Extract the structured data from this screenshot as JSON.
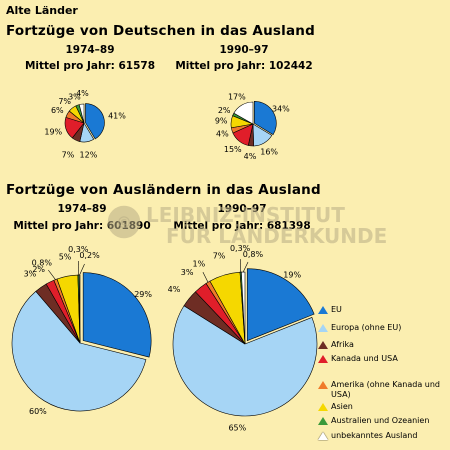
{
  "header": {
    "region": "Alte Länder"
  },
  "watermark": {
    "line1": "LEIBNIZ-INSTITUT",
    "line2": "FÜR LÄNDERKUNDE"
  },
  "legend": [
    {
      "label": "EU",
      "color": "#1a79d4"
    },
    {
      "label": "Europa (ohne EU)",
      "color": "#a6d5f5"
    },
    {
      "label": "Afrika",
      "color": "#6e2d24"
    },
    {
      "label": "Kanada und USA",
      "color": "#e01e2a"
    },
    {
      "label": "Amerika (ohne Kanada und USA)",
      "color": "#f07a2a"
    },
    {
      "label": "Asien",
      "color": "#f5d800"
    },
    {
      "label": "Australien und Ozeanien",
      "color": "#3a9a3a"
    },
    {
      "label": "unbekanntes Ausland",
      "color": "#ffffff"
    }
  ],
  "chart_data": [
    {
      "type": "pie",
      "section_title": "Fortzüge von Deutschen in das Ausland",
      "period": "1974–89",
      "average": "Mittel pro Jahr: 61578",
      "slices": [
        {
          "category": "EU",
          "value": 41,
          "label": "41%"
        },
        {
          "category": "Europa (ohne EU)",
          "value": 12,
          "label": "12%"
        },
        {
          "category": "Afrika",
          "value": 7,
          "label": "7%"
        },
        {
          "category": "Kanada und USA",
          "value": 19,
          "label": "19%"
        },
        {
          "category": "Amerika (ohne Kanada und USA)",
          "value": 6,
          "label": "6%"
        },
        {
          "category": "Asien",
          "value": 7,
          "label": "7%"
        },
        {
          "category": "Australien und Ozeanien",
          "value": 3,
          "label": "3%"
        },
        {
          "category": "unbekanntes Ausland",
          "value": 4,
          "label": "4%"
        }
      ]
    },
    {
      "type": "pie",
      "section_title": "Fortzüge von Deutschen in das Ausland",
      "period": "1990–97",
      "average": "Mittel pro Jahr: 102442",
      "slices": [
        {
          "category": "EU",
          "value": 34,
          "label": "34%"
        },
        {
          "category": "Europa (ohne EU)",
          "value": 16,
          "label": "16%"
        },
        {
          "category": "Afrika",
          "value": 4,
          "label": "4%"
        },
        {
          "category": "Kanada und USA",
          "value": 15,
          "label": "15%"
        },
        {
          "category": "Amerika (ohne Kanada und USA)",
          "value": 4,
          "label": "4%"
        },
        {
          "category": "Asien",
          "value": 9,
          "label": "9%"
        },
        {
          "category": "Australien und Ozeanien",
          "value": 2,
          "label": "2%"
        },
        {
          "category": "unbekanntes Ausland",
          "value": 17,
          "label": "17%"
        }
      ]
    },
    {
      "type": "pie",
      "section_title": "Fortzüge von Ausländern in das Ausland",
      "period": "1974–89",
      "average": "Mittel pro Jahr: 601890",
      "slices": [
        {
          "category": "EU",
          "value": 29,
          "label": "29%"
        },
        {
          "category": "Europa (ohne EU)",
          "value": 60,
          "label": "60%"
        },
        {
          "category": "Afrika",
          "value": 3,
          "label": "3%"
        },
        {
          "category": "Kanada und USA",
          "value": 2,
          "label": "2%"
        },
        {
          "category": "Amerika (ohne Kanada und USA)",
          "value": 0.8,
          "label": "0,8%"
        },
        {
          "category": "Asien",
          "value": 5,
          "label": "5%"
        },
        {
          "category": "Australien und Ozeanien",
          "value": 0.3,
          "label": "0,3%"
        },
        {
          "category": "unbekanntes Ausland",
          "value": 0.2,
          "label": "0,2%"
        }
      ]
    },
    {
      "type": "pie",
      "section_title": "Fortzüge von Ausländern in das Ausland",
      "period": "1990–97",
      "average": "Mittel pro Jahr: 681398",
      "slices": [
        {
          "category": "EU",
          "value": 19,
          "label": "19%"
        },
        {
          "category": "Europa (ohne EU)",
          "value": 65,
          "label": "65%"
        },
        {
          "category": "Afrika",
          "value": 4,
          "label": "4%"
        },
        {
          "category": "Kanada und USA",
          "value": 3,
          "label": "3%"
        },
        {
          "category": "Amerika (ohne Kanada und USA)",
          "value": 1,
          "label": "1%"
        },
        {
          "category": "Asien",
          "value": 7,
          "label": "7%"
        },
        {
          "category": "Australien und Ozeanien",
          "value": 0.3,
          "label": "0,3%"
        },
        {
          "category": "unbekanntes Ausland",
          "value": 0.8,
          "label": "0,8%"
        }
      ]
    }
  ]
}
